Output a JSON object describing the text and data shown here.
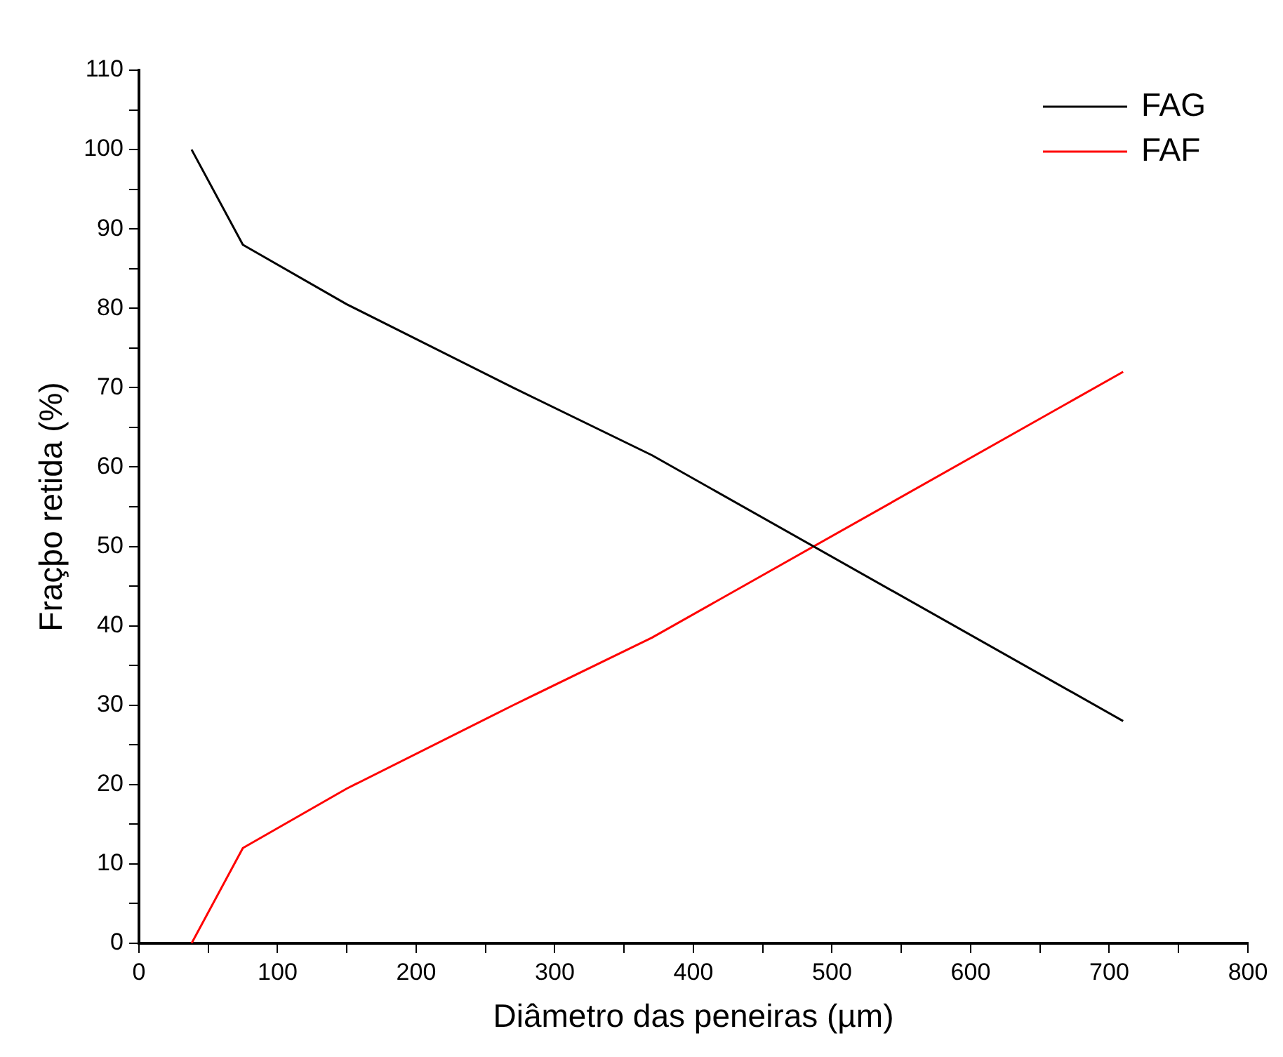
{
  "chart_data": {
    "type": "line",
    "xlabel": "Diâmetro das peneiras (µm)",
    "ylabel": "Fraçþo retida (%)",
    "x": [
      38,
      75,
      150,
      270,
      370,
      710
    ],
    "series": [
      {
        "name": "FAG",
        "color": "#000000",
        "values": [
          100,
          88,
          80.5,
          70,
          61.5,
          28
        ]
      },
      {
        "name": "FAF",
        "color": "#ff0000",
        "values": [
          0,
          12,
          19.5,
          30,
          38.5,
          72
        ]
      }
    ],
    "xlim": [
      0,
      800
    ],
    "ylim": [
      0,
      110
    ],
    "xticks": [
      0,
      {
        "value": 50,
        "label": null
      },
      100,
      {
        "value": 150,
        "label": null
      },
      200,
      {
        "value": 250,
        "label": null
      },
      300,
      {
        "value": 350,
        "label": null
      },
      400,
      {
        "value": 450,
        "label": null
      },
      500,
      {
        "value": 550,
        "label": null
      },
      600,
      {
        "value": 650,
        "label": null
      },
      700,
      {
        "value": 750,
        "label": null
      },
      800
    ],
    "yticks": [
      0,
      {
        "value": 5,
        "label": null
      },
      10,
      {
        "value": 15,
        "label": null
      },
      20,
      {
        "value": 25,
        "label": null
      },
      30,
      {
        "value": 35,
        "label": null
      },
      40,
      {
        "value": 45,
        "label": null
      },
      50,
      {
        "value": 55,
        "label": null
      },
      60,
      {
        "value": 65,
        "label": null
      },
      70,
      {
        "value": 75,
        "label": null
      },
      80,
      {
        "value": 85,
        "label": null
      },
      90,
      {
        "value": 95,
        "label": null
      },
      100,
      {
        "value": 105,
        "label": null
      },
      110
    ],
    "grid": false,
    "legend": "top right",
    "marker": "none",
    "line_style": "solid"
  }
}
